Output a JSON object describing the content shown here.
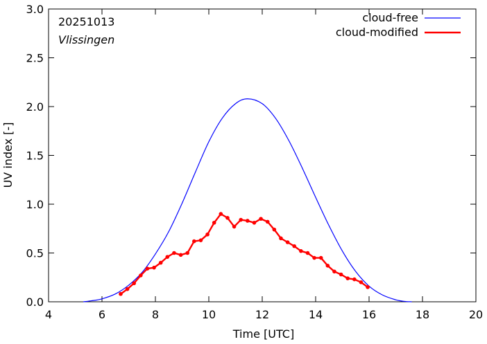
{
  "chart_data": {
    "type": "line",
    "title": "",
    "date_label": "20251013",
    "location_label": "Vlissingen",
    "xlabel": "Time  [UTC]",
    "ylabel": "UV index  [-]",
    "xlim": [
      4,
      20
    ],
    "ylim": [
      0.0,
      3.0
    ],
    "xticks": [
      4,
      6,
      8,
      10,
      12,
      14,
      16,
      18,
      20
    ],
    "xtick_labels": [
      "4",
      "6",
      "8",
      "10",
      "12",
      "14",
      "16",
      "18",
      "20"
    ],
    "yticks": [
      0.0,
      0.5,
      1.0,
      1.5,
      2.0,
      2.5,
      3.0
    ],
    "ytick_labels": [
      "0.0",
      "0.5",
      "1.0",
      "1.5",
      "2.0",
      "2.5",
      "3.0"
    ],
    "grid": false,
    "legend_position": "top-right",
    "series": [
      {
        "name": "cloud-free",
        "color": "#0000ff",
        "style": "line",
        "x": [
          5.3,
          5.6,
          6.0,
          6.5,
          7.0,
          7.5,
          8.0,
          8.5,
          9.0,
          9.5,
          10.0,
          10.5,
          11.0,
          11.45,
          12.0,
          12.5,
          13.0,
          13.5,
          14.0,
          14.5,
          15.0,
          15.5,
          16.0,
          16.5,
          17.0,
          17.3,
          17.6
        ],
        "y": [
          0.0,
          0.01,
          0.03,
          0.08,
          0.17,
          0.3,
          0.49,
          0.72,
          1.01,
          1.33,
          1.64,
          1.88,
          2.03,
          2.08,
          2.03,
          1.88,
          1.65,
          1.37,
          1.07,
          0.78,
          0.52,
          0.31,
          0.16,
          0.07,
          0.02,
          0.005,
          0.0
        ]
      },
      {
        "name": "cloud-modified",
        "color": "#ff0000",
        "style": "line+markers",
        "x": [
          6.7,
          6.95,
          7.2,
          7.45,
          7.7,
          7.95,
          8.2,
          8.45,
          8.7,
          8.95,
          9.2,
          9.45,
          9.7,
          9.95,
          10.2,
          10.45,
          10.7,
          10.95,
          11.2,
          11.45,
          11.7,
          11.95,
          12.2,
          12.45,
          12.7,
          12.95,
          13.2,
          13.45,
          13.7,
          13.95,
          14.2,
          14.45,
          14.7,
          14.95,
          15.2,
          15.45,
          15.7,
          15.95
        ],
        "y": [
          0.08,
          0.13,
          0.19,
          0.27,
          0.34,
          0.35,
          0.4,
          0.46,
          0.5,
          0.48,
          0.5,
          0.62,
          0.63,
          0.69,
          0.81,
          0.9,
          0.86,
          0.77,
          0.84,
          0.83,
          0.81,
          0.85,
          0.82,
          0.74,
          0.65,
          0.61,
          0.57,
          0.52,
          0.5,
          0.45,
          0.45,
          0.37,
          0.31,
          0.28,
          0.24,
          0.23,
          0.2,
          0.15
        ]
      }
    ]
  }
}
